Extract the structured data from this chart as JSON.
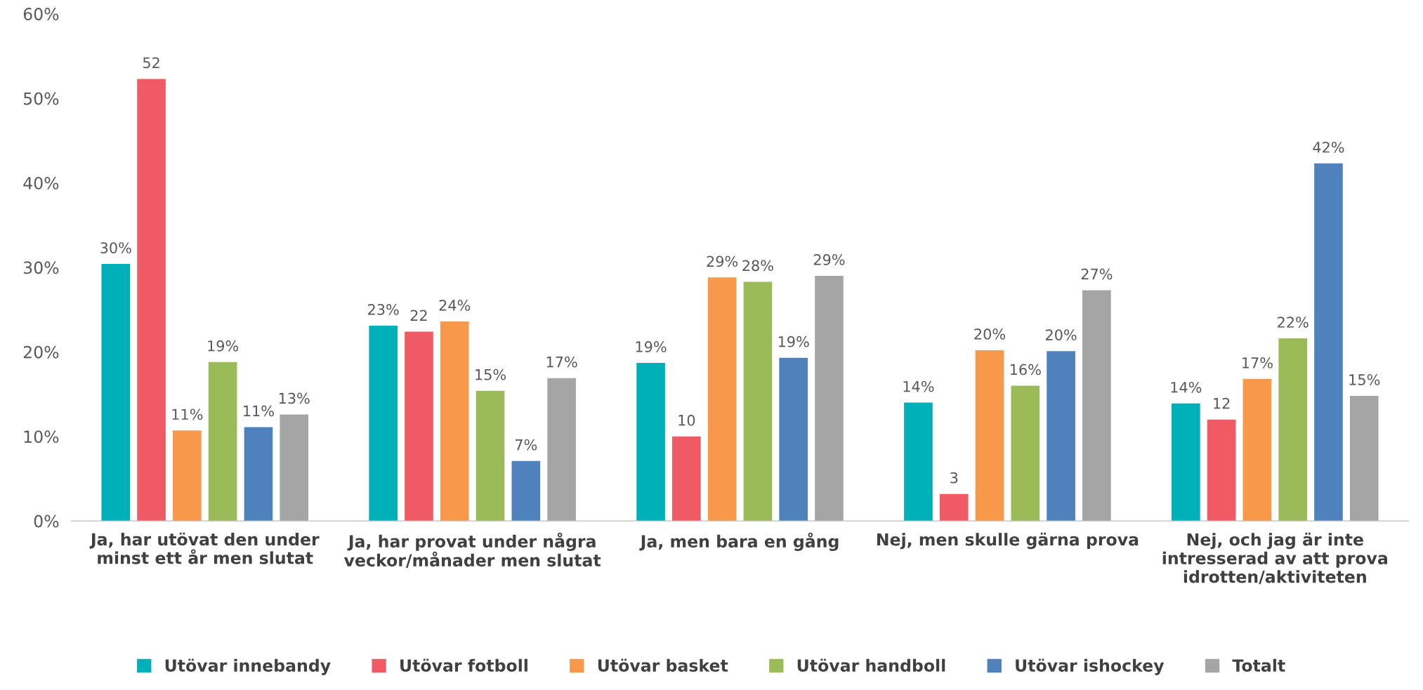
{
  "chart_data": {
    "type": "bar",
    "categories": [
      "Ja, har utövat den under\nminst ett år men slutat",
      "Ja, har provat under några\nveckor/månader men slutat",
      "Ja, men bara en gång",
      "Nej, men skulle gärna prova",
      "Nej, och jag är inte\nintresserad av att prova\nidrotten/aktiviteten"
    ],
    "series": [
      {
        "name": "Utövar innebandy",
        "color": "#00b0b9",
        "values": [
          30.4,
          23.1,
          18.7,
          14.0,
          13.9
        ],
        "value_labels": [
          "30%",
          "23%",
          "19%",
          "14%",
          "14%"
        ]
      },
      {
        "name": "Utövar fotboll",
        "color": "#f05a64",
        "values": [
          52.3,
          22.4,
          10.0,
          3.2,
          12.0
        ],
        "value_labels": [
          "52",
          "22",
          "10",
          "3",
          "12"
        ]
      },
      {
        "name": "Utövar basket",
        "color": "#f7984a",
        "values": [
          10.7,
          23.6,
          28.8,
          20.2,
          16.8
        ],
        "value_labels": [
          "11%",
          "24%",
          "29%",
          "20%",
          "17%"
        ]
      },
      {
        "name": "Utövar handboll",
        "color": "#9bbb59",
        "values": [
          18.8,
          15.4,
          28.3,
          16.0,
          21.6
        ],
        "value_labels": [
          "19%",
          "15%",
          "28%",
          "16%",
          "22%"
        ]
      },
      {
        "name": "Utövar ishockey",
        "color": "#4f81bd",
        "values": [
          11.1,
          7.1,
          19.3,
          20.1,
          42.3
        ],
        "value_labels": [
          "11%",
          "7%",
          "19%",
          "20%",
          "42%"
        ]
      },
      {
        "name": "Totalt",
        "color": "#a5a5a5",
        "values": [
          12.6,
          16.9,
          29.0,
          27.3,
          14.8
        ],
        "value_labels": [
          "13%",
          "17%",
          "29%",
          "27%",
          "15%"
        ]
      }
    ],
    "ylim": [
      0,
      60
    ],
    "yticks": [
      {
        "value": 0,
        "label": "0%"
      },
      {
        "value": 10,
        "label": "10%"
      },
      {
        "value": 20,
        "label": "20%"
      },
      {
        "value": 30,
        "label": "30%"
      },
      {
        "value": 40,
        "label": "40%"
      },
      {
        "value": 50,
        "label": "50%"
      },
      {
        "value": 60,
        "label": "60%"
      }
    ],
    "grid": false,
    "legend": "bottom"
  }
}
